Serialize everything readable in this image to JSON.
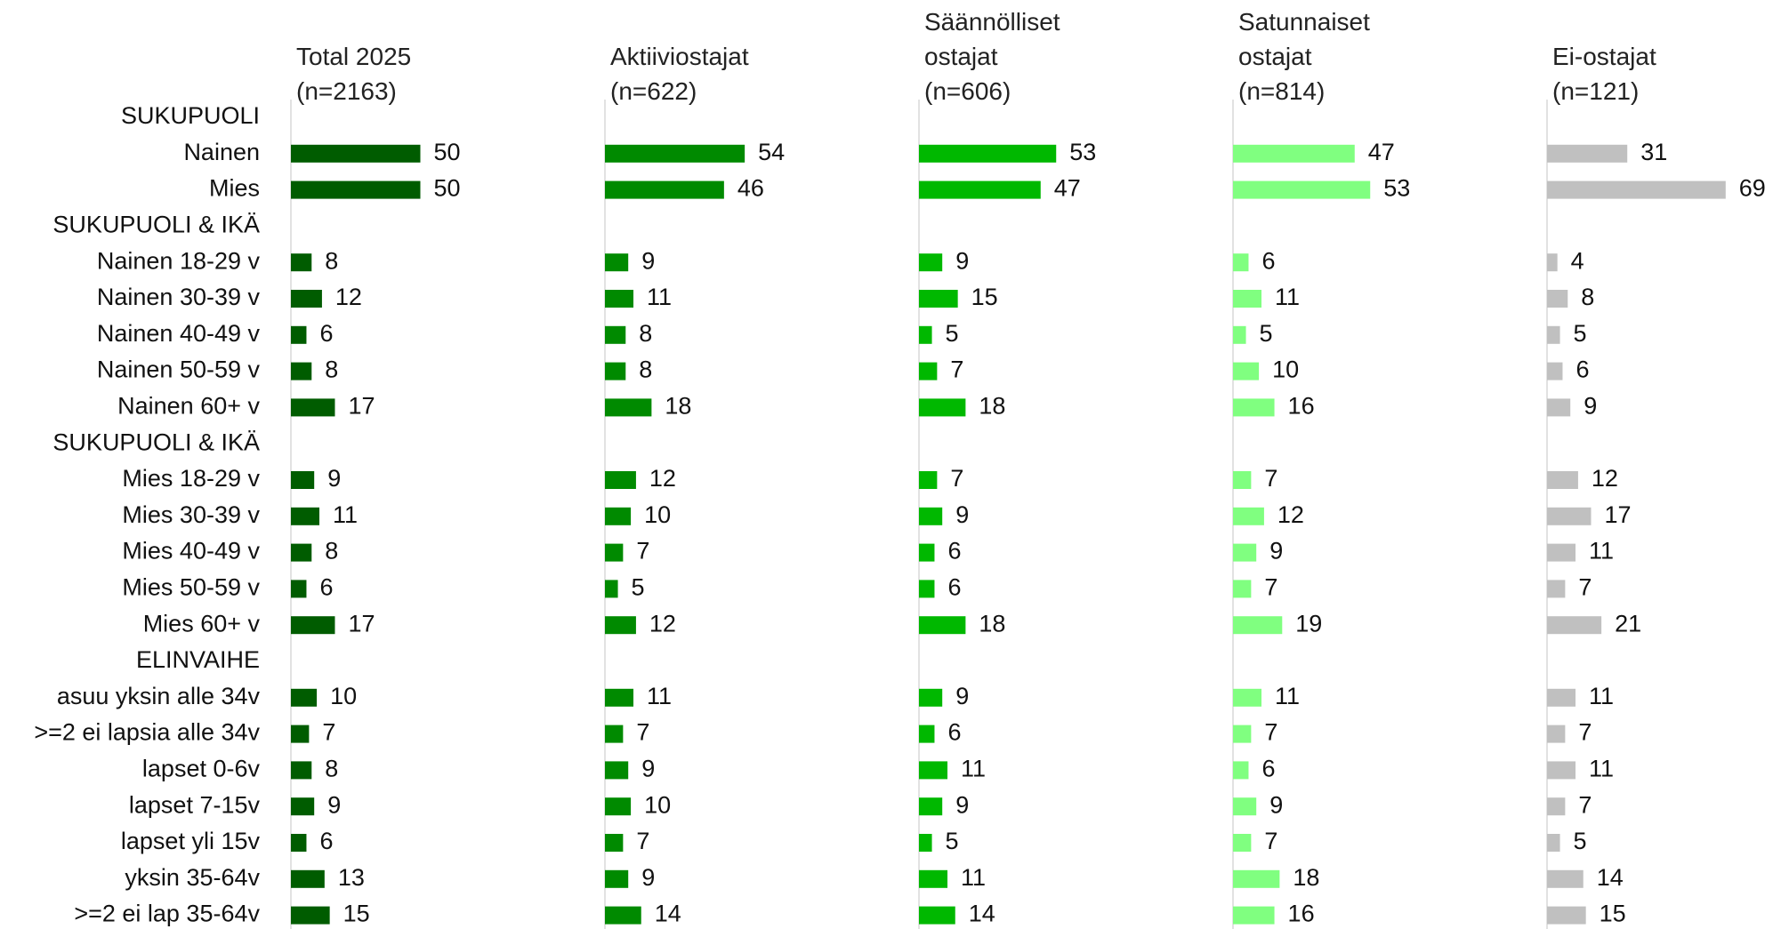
{
  "chart_data": {
    "type": "bar",
    "categories": [
      "SUKUPUOLI",
      "Nainen",
      "Mies",
      "SUKUPUOLI & IKÄ",
      "Nainen 18-29 v",
      "Nainen 30-39 v",
      "Nainen 40-49 v",
      "Nainen 50-59 v",
      "Nainen 60+ v",
      "SUKUPUOLI & IKÄ",
      "Mies 18-29 v",
      "Mies 30-39 v",
      "Mies 40-49 v",
      "Mies 50-59 v",
      "Mies 60+ v",
      "ELINVAIHE",
      "asuu yksin alle 34v",
      ">=2 ei lapsia alle 34v",
      "lapset 0-6v",
      "lapset 7-15v",
      "lapset yli 15v",
      "yksin 35-64v",
      ">=2 ei lap 35-64v"
    ],
    "xlim": [
      0,
      100
    ],
    "series": [
      {
        "name": "Total 2025\n(n=2163)",
        "color": "#005c00",
        "values": [
          null,
          50,
          50,
          null,
          8,
          12,
          6,
          8,
          17,
          null,
          9,
          11,
          8,
          6,
          17,
          null,
          10,
          7,
          8,
          9,
          6,
          13,
          15
        ]
      },
      {
        "name": "Aktiiviostajat\n(n=622)",
        "color": "#008a00",
        "values": [
          null,
          54,
          46,
          null,
          9,
          11,
          8,
          8,
          18,
          null,
          12,
          10,
          7,
          5,
          12,
          null,
          11,
          7,
          9,
          10,
          7,
          9,
          14
        ]
      },
      {
        "name": "Säännölliset\nostajat\n(n=606)",
        "color": "#00b800",
        "values": [
          null,
          53,
          47,
          null,
          9,
          15,
          5,
          7,
          18,
          null,
          7,
          9,
          6,
          6,
          18,
          null,
          9,
          6,
          11,
          9,
          5,
          11,
          14
        ]
      },
      {
        "name": "Satunnaiset\nostajat\n(n=814)",
        "color": "#80ff80",
        "values": [
          null,
          47,
          53,
          null,
          6,
          11,
          5,
          10,
          16,
          null,
          7,
          12,
          9,
          7,
          19,
          null,
          11,
          7,
          6,
          9,
          7,
          18,
          16
        ]
      },
      {
        "name": "Ei-ostajat\n(n=121)",
        "color": "#c0c0c0",
        "values": [
          null,
          31,
          69,
          null,
          4,
          8,
          5,
          6,
          9,
          null,
          12,
          17,
          11,
          7,
          21,
          null,
          11,
          7,
          11,
          7,
          5,
          14,
          15
        ]
      }
    ]
  }
}
